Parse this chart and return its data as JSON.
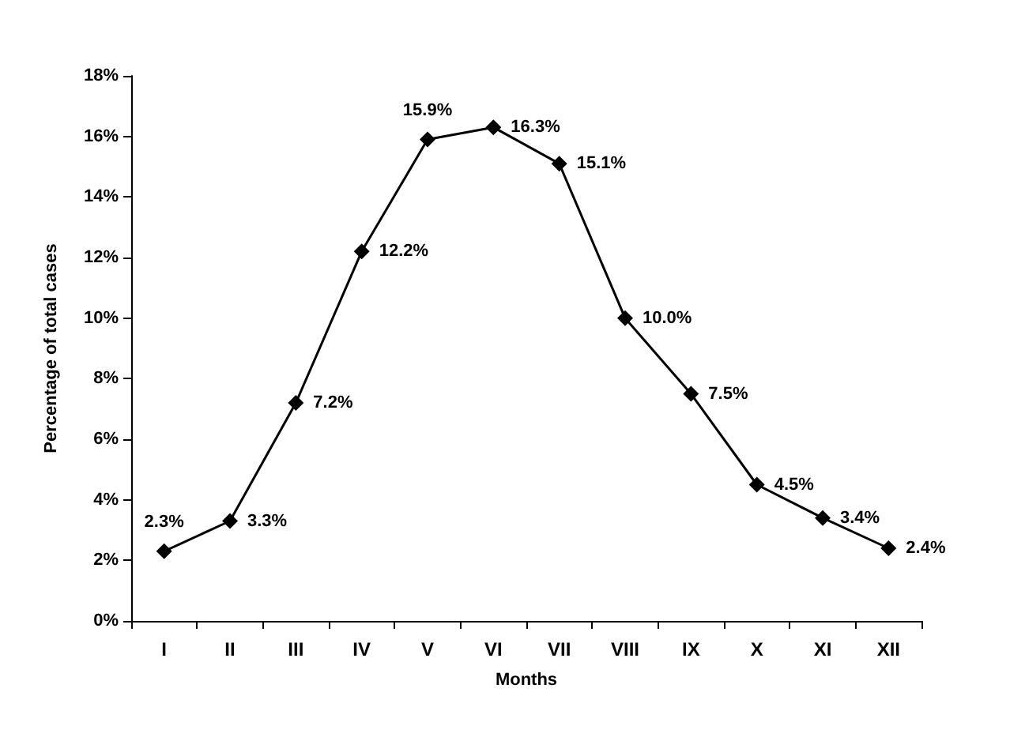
{
  "chart_data": {
    "type": "line",
    "xlabel": "Months",
    "ylabel": "Percentage of total cases",
    "categories": [
      "I",
      "II",
      "III",
      "IV",
      "V",
      "VI",
      "VII",
      "VIII",
      "IX",
      "X",
      "XI",
      "XII"
    ],
    "series": [
      {
        "color": "#000000",
        "values": [
          2.3,
          3.3,
          7.2,
          12.2,
          15.9,
          16.3,
          15.1,
          10.0,
          7.5,
          4.5,
          3.4,
          2.4
        ],
        "value_labels": [
          "2.3%",
          "3.3%",
          "7.2%",
          "12.2%",
          "15.9%",
          "16.3%",
          "15.1%",
          "10.0%",
          "7.5%",
          "4.5%",
          "3.4%",
          "2.4%"
        ]
      }
    ],
    "ylim": [
      0,
      18
    ],
    "yticks": [
      {
        "value": 0,
        "label": "0%"
      },
      {
        "value": 2,
        "label": "2%"
      },
      {
        "value": 4,
        "label": "4%"
      },
      {
        "value": 6,
        "label": "6%"
      },
      {
        "value": 8,
        "label": "8%"
      },
      {
        "value": 10,
        "label": "10%"
      },
      {
        "value": 12,
        "label": "12%"
      },
      {
        "value": 14,
        "label": "14%"
      },
      {
        "value": 16,
        "label": "16%"
      },
      {
        "value": 18,
        "label": "18%"
      }
    ],
    "grid": false,
    "marker": "diamond",
    "line_style": "solid"
  }
}
